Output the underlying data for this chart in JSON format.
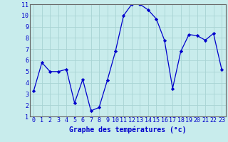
{
  "hours": [
    0,
    1,
    2,
    3,
    4,
    5,
    6,
    7,
    8,
    9,
    10,
    11,
    12,
    13,
    14,
    15,
    16,
    17,
    18,
    19,
    20,
    21,
    22,
    23
  ],
  "temps": [
    3.3,
    5.8,
    5.0,
    5.0,
    5.2,
    2.2,
    4.3,
    1.5,
    1.8,
    4.2,
    6.8,
    10.0,
    11.0,
    11.0,
    10.5,
    9.7,
    7.8,
    3.5,
    6.8,
    8.3,
    8.2,
    7.8,
    8.4,
    5.2
  ],
  "xlabel": "Graphe des températures (°c)",
  "line_color": "#0000cc",
  "bg_color": "#c8ecec",
  "grid_color": "#a8d4d4",
  "axis_color": "#555555",
  "ylim": [
    1,
    11
  ],
  "xlim": [
    -0.5,
    23.5
  ],
  "yticks": [
    1,
    2,
    3,
    4,
    5,
    6,
    7,
    8,
    9,
    10,
    11
  ],
  "xticks": [
    0,
    1,
    2,
    3,
    4,
    5,
    6,
    7,
    8,
    9,
    10,
    11,
    12,
    13,
    14,
    15,
    16,
    17,
    18,
    19,
    20,
    21,
    22,
    23
  ],
  "tick_fontsize": 6.0,
  "xlabel_fontsize": 7.0,
  "xlabel_bold": true
}
